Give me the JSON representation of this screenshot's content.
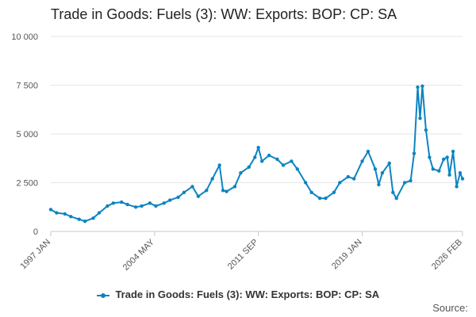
{
  "colors": {
    "series": "#0d84c1",
    "grid": "#e6e6e6",
    "axis": "#c8c8c8",
    "text": "#555555"
  },
  "title": "Trade in Goods: Fuels (3): WW: Exports: BOP: CP: SA",
  "source_label": "Source:",
  "chart_data": {
    "type": "line",
    "title": "Trade in Goods: Fuels (3): WW: Exports: BOP: CP: SA",
    "xlabel": "",
    "ylabel": "",
    "ylim": [
      0,
      10000
    ],
    "yticks": [
      {
        "value": 0,
        "label": "0"
      },
      {
        "value": 2500,
        "label": "2 500"
      },
      {
        "value": 5000,
        "label": "5 000"
      },
      {
        "value": 7500,
        "label": "7 500"
      },
      {
        "value": 10000,
        "label": "10 000"
      }
    ],
    "xticks": [
      {
        "value": "1997-01",
        "label": "1997 JAN"
      },
      {
        "value": "2004-05",
        "label": "2004 MAY"
      },
      {
        "value": "2011-09",
        "label": "2011 SEP"
      },
      {
        "value": "2019-01",
        "label": "2019 JAN"
      },
      {
        "value": "2026-02",
        "label": "2026 FEB"
      }
    ],
    "xlim": [
      "1997-01",
      "2026-02"
    ],
    "grid": true,
    "legend": "bottom-center",
    "series": [
      {
        "name": "Trade in Goods: Fuels (3): WW: Exports: BOP: CP: SA",
        "points": [
          [
            "1997-01",
            1120
          ],
          [
            "1997-06",
            950
          ],
          [
            "1998-01",
            900
          ],
          [
            "1998-06",
            760
          ],
          [
            "1999-01",
            620
          ],
          [
            "1999-06",
            520
          ],
          [
            "2000-01",
            680
          ],
          [
            "2000-06",
            950
          ],
          [
            "2001-01",
            1300
          ],
          [
            "2001-06",
            1450
          ],
          [
            "2002-01",
            1500
          ],
          [
            "2002-06",
            1380
          ],
          [
            "2003-01",
            1250
          ],
          [
            "2003-06",
            1300
          ],
          [
            "2004-01",
            1450
          ],
          [
            "2004-06",
            1300
          ],
          [
            "2005-01",
            1450
          ],
          [
            "2005-06",
            1600
          ],
          [
            "2006-01",
            1750
          ],
          [
            "2006-06",
            2000
          ],
          [
            "2007-01",
            2300
          ],
          [
            "2007-06",
            1800
          ],
          [
            "2008-01",
            2100
          ],
          [
            "2008-06",
            2700
          ],
          [
            "2008-12",
            3400
          ],
          [
            "2009-03",
            2100
          ],
          [
            "2009-06",
            2050
          ],
          [
            "2010-01",
            2300
          ],
          [
            "2010-06",
            3000
          ],
          [
            "2011-01",
            3300
          ],
          [
            "2011-06",
            3800
          ],
          [
            "2011-09",
            4300
          ],
          [
            "2011-12",
            3600
          ],
          [
            "2012-06",
            3900
          ],
          [
            "2013-01",
            3700
          ],
          [
            "2013-06",
            3400
          ],
          [
            "2014-01",
            3600
          ],
          [
            "2014-06",
            3200
          ],
          [
            "2015-01",
            2500
          ],
          [
            "2015-06",
            2000
          ],
          [
            "2016-01",
            1700
          ],
          [
            "2016-06",
            1700
          ],
          [
            "2017-01",
            2000
          ],
          [
            "2017-06",
            2500
          ],
          [
            "2018-01",
            2800
          ],
          [
            "2018-06",
            2700
          ],
          [
            "2019-01",
            3600
          ],
          [
            "2019-06",
            4100
          ],
          [
            "2019-12",
            3200
          ],
          [
            "2020-03",
            2400
          ],
          [
            "2020-06",
            3000
          ],
          [
            "2020-12",
            3500
          ],
          [
            "2021-03",
            2000
          ],
          [
            "2021-06",
            1700
          ],
          [
            "2022-01",
            2500
          ],
          [
            "2022-06",
            2600
          ],
          [
            "2022-09",
            4000
          ],
          [
            "2022-12",
            7400
          ],
          [
            "2023-02",
            5800
          ],
          [
            "2023-04",
            7450
          ],
          [
            "2023-07",
            5200
          ],
          [
            "2023-10",
            3800
          ],
          [
            "2024-01",
            3200
          ],
          [
            "2024-06",
            3100
          ],
          [
            "2024-10",
            3700
          ],
          [
            "2025-01",
            3800
          ],
          [
            "2025-03",
            2900
          ],
          [
            "2025-06",
            4100
          ],
          [
            "2025-09",
            2300
          ],
          [
            "2025-12",
            3000
          ],
          [
            "2026-02",
            2700
          ]
        ]
      }
    ]
  }
}
